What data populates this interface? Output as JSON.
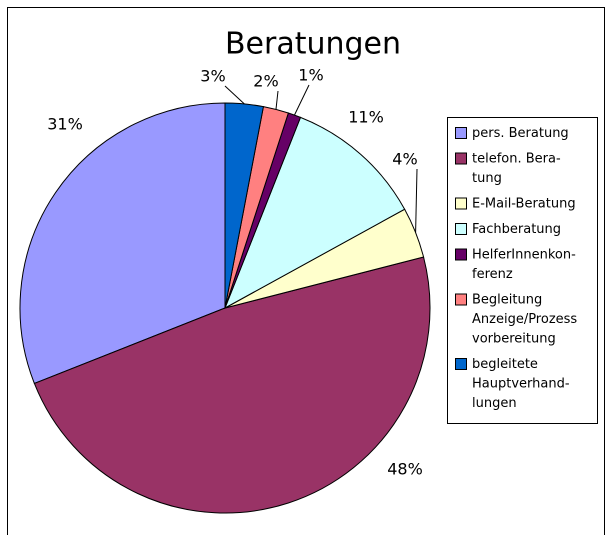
{
  "chart_data": {
    "type": "pie",
    "title": "Beratungen",
    "categories": [
      "pers. Beratung",
      "telefon. Bera-\ntung",
      "E-Mail-Beratung",
      "Fachberatung",
      "HelferInnenkon-\nferenz",
      "Begleitung\nAnzeige/Prozess\nvorbereitung",
      "begleitete\nHauptverhand-\nlungen"
    ],
    "values": [
      31,
      48,
      4,
      11,
      1,
      2,
      3
    ],
    "value_labels": [
      "31%",
      "48%",
      "4%",
      "11%",
      "1%",
      "2%",
      "3%"
    ],
    "colors": [
      "#9999ff",
      "#993366",
      "#ffffcc",
      "#ccffff",
      "#660066",
      "#ff8080",
      "#0066cc"
    ],
    "legend": "right"
  }
}
